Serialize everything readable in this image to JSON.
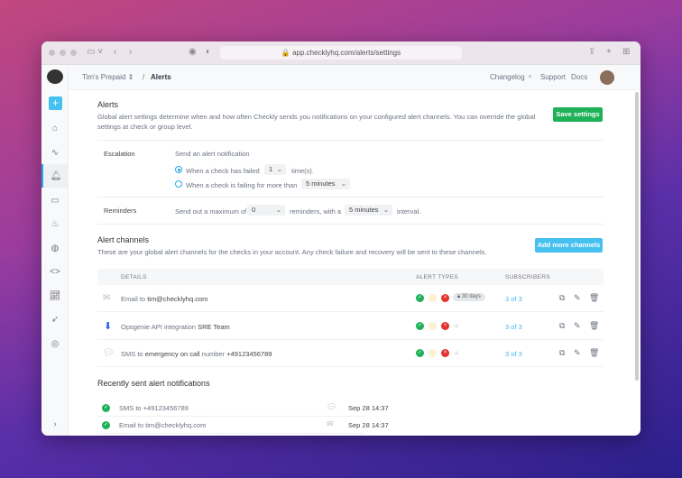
{
  "browser": {
    "url": "app.checklyhq.com/alerts/settings"
  },
  "header": {
    "account": "Tim's Prepaid",
    "separator": "/",
    "page": "Alerts",
    "links": [
      "Changelog",
      "Support",
      "Docs"
    ]
  },
  "alerts": {
    "title": "Alerts",
    "description": "Global alert settings determine when and how often Checkly sends you notifications on your configured alert channels. You can override the global settings at check or group level.",
    "save_label": "Save settings",
    "escalation": {
      "label": "Escalation",
      "intro": "Send an alert notification",
      "option1_prefix": "When a check has failed",
      "option1_value": "1",
      "option1_suffix": "time(s).",
      "option2_prefix": "When a check is failing for more than",
      "option2_value": "5 minutes",
      "selected": "option1"
    },
    "reminders": {
      "label": "Reminders",
      "prefix": "Send out a maximum of",
      "count": "0",
      "middle": "reminders, with a",
      "interval": "5 minutes",
      "suffix": "interval."
    }
  },
  "channels": {
    "title": "Alert channels",
    "description": "These are your global alert channels for the checks in your account. Any check failure and recovery will be sent to these channels.",
    "add_label": "Add more channels",
    "columns": [
      "DETAILS",
      "ALERT TYPES",
      "SUBSCRIBERS"
    ],
    "rows": [
      {
        "icon": "mail-icon",
        "type": "Email to",
        "target": "tim@checklyhq.com",
        "extra": "",
        "badge": "30 days",
        "subscribers": "3 of 3"
      },
      {
        "icon": "opsgenie-icon",
        "type": "Opsgenie API integration",
        "target": "SRE Team",
        "extra": "",
        "badge": "",
        "subscribers": "3 of 3"
      },
      {
        "icon": "sms-icon",
        "type": "SMS to",
        "target": "emergency on call",
        "extra": "number",
        "number": "+49123456789",
        "badge": "",
        "subscribers": "3 of 3"
      }
    ]
  },
  "recent": {
    "title": "Recently sent alert notifications",
    "items": [
      {
        "text": "SMS to +49123456789",
        "channel": "sms-icon",
        "time": "Sep 28 14:37"
      },
      {
        "text": "Email to tim@checklyhq.com",
        "channel": "mail-icon",
        "time": "Sep 28 14:37"
      }
    ]
  },
  "colors": {
    "green": "#1fb157",
    "blue": "#45c1f0",
    "red": "#e5322d"
  }
}
